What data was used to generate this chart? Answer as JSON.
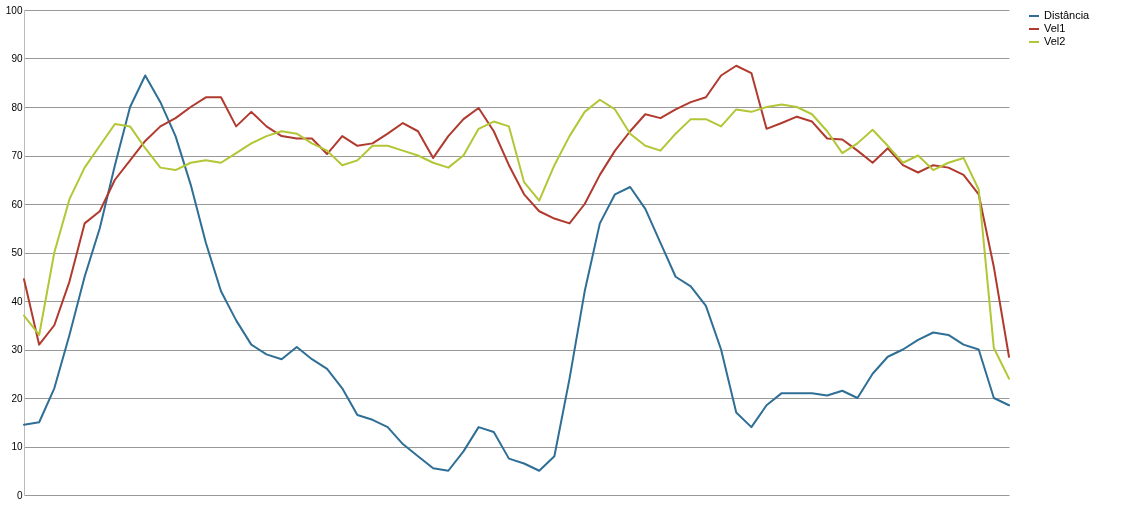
{
  "chart_data": {
    "type": "line",
    "categories": [
      null,
      null,
      null,
      null,
      null,
      null,
      null,
      null,
      null,
      null,
      null,
      null,
      null,
      null,
      null,
      null,
      null,
      null,
      null,
      null,
      null,
      null,
      null,
      null,
      null,
      null,
      null,
      null,
      null,
      null,
      null,
      null,
      null,
      null,
      null,
      null,
      null,
      null,
      null,
      null,
      null,
      null,
      null,
      null,
      null,
      null,
      null,
      null,
      null,
      null,
      null,
      null,
      null,
      null,
      null,
      null,
      null,
      null,
      null,
      null,
      null,
      null,
      null,
      null,
      null,
      null
    ],
    "series": [
      {
        "name": "Distância",
        "color": "#2f6f96",
        "values": [
          14.5,
          15,
          22,
          33,
          45,
          55,
          68,
          80,
          86.5,
          81,
          74,
          64,
          52,
          42,
          36,
          31,
          29,
          28,
          30.5,
          28,
          26,
          22,
          16.5,
          15.5,
          14,
          10.5,
          8,
          5.5,
          5,
          9,
          14,
          13,
          7.5,
          6.5,
          5,
          8,
          24,
          42,
          56,
          62,
          63.5,
          59,
          52,
          45,
          43,
          39,
          30,
          17,
          14,
          18.5,
          21,
          21,
          21,
          20.5,
          21.5,
          20,
          25,
          28.5,
          30,
          32,
          33.5,
          33,
          31,
          30,
          20,
          18.5
        ]
      },
      {
        "name": "Vel1",
        "color": "#b03a2e",
        "values": [
          44.5,
          31,
          35,
          44,
          56,
          58.5,
          65,
          69,
          73,
          76,
          77.7,
          80,
          82,
          82,
          76,
          79,
          76,
          74,
          73.5,
          73.5,
          70.3,
          74,
          72,
          72.5,
          74.5,
          76.7,
          75,
          69.5,
          74,
          77.5,
          79.8,
          75,
          68,
          62,
          58.5,
          57,
          56,
          60,
          66,
          71,
          75,
          78.5,
          77.7,
          79.5,
          81,
          82,
          86.5,
          88.5,
          87,
          75.5,
          76.7,
          78,
          77,
          73.5,
          73.3,
          71,
          68.5,
          71.5,
          68,
          66.5,
          68,
          67.5,
          66,
          62,
          47,
          28.5
        ]
      },
      {
        "name": "Vel2",
        "color": "#b3c635",
        "values": [
          37,
          33,
          50,
          61,
          67.5,
          72,
          76.5,
          76,
          71.5,
          67.5,
          67,
          68.5,
          69,
          68.5,
          70.5,
          72.5,
          74,
          75,
          74.5,
          72.5,
          71,
          68,
          69,
          72,
          72,
          71,
          70,
          68.5,
          67.5,
          70,
          75.5,
          77,
          76,
          64.5,
          60.7,
          68,
          74,
          79,
          81.5,
          79.5,
          74.5,
          72,
          71,
          74.5,
          77.5,
          77.5,
          76,
          79.5,
          79,
          80,
          80.5,
          80,
          78.5,
          75,
          70.5,
          72.5,
          75.3,
          72,
          68.5,
          70,
          67,
          68.5,
          69.5,
          63,
          30.3,
          24
        ]
      }
    ],
    "ylim": [
      0,
      100
    ],
    "yticks": [
      0,
      10,
      20,
      30,
      40,
      50,
      60,
      70,
      80,
      90,
      100
    ],
    "grid": "y",
    "legend": "right",
    "tick_labels": "y"
  }
}
